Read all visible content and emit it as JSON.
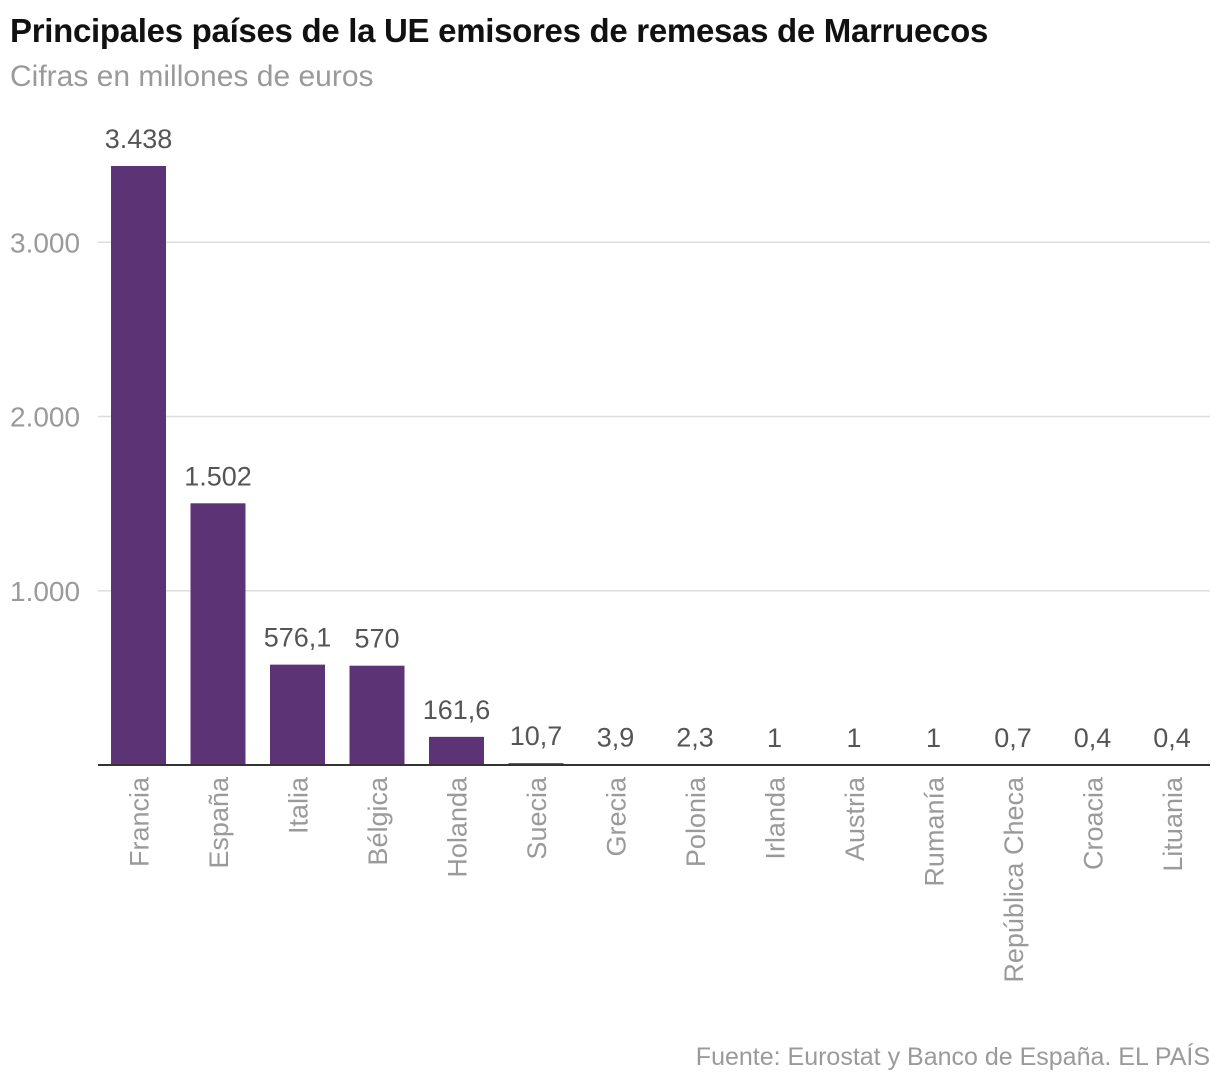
{
  "header": {
    "title": "Principales países de la UE emisores de remesas de Marruecos",
    "subtitle": "Cifras en millones de euros"
  },
  "footer": {
    "source": "Fuente: Eurostat y Banco de España. EL PAÍS"
  },
  "colors": {
    "bar": "#5c3475",
    "grid": "#dddddd",
    "axis": "#333333",
    "tick_text": "#9a9a9a",
    "value_text": "#555555"
  },
  "chart_data": {
    "type": "bar",
    "title": "Principales países de la UE emisores de remesas de Marruecos",
    "subtitle": "Cifras en millones de euros",
    "categories": [
      "Francia",
      "España",
      "Italia",
      "Bélgica",
      "Holanda",
      "Suecia",
      "Grecia",
      "Polonia",
      "Irlanda",
      "Austria",
      "Rumanía",
      "República Checa",
      "Croacia",
      "Lituania"
    ],
    "values": [
      3438,
      1502,
      576.1,
      570,
      161.6,
      10.7,
      3.9,
      2.3,
      1,
      1,
      1,
      0.7,
      0.4,
      0.4
    ],
    "value_labels": [
      "3.438",
      "1.502",
      "576,1",
      "570",
      "161,6",
      "10,7",
      "3,9",
      "2,3",
      "1",
      "1",
      "1",
      "0,7",
      "0,4",
      "0,4"
    ],
    "yticks": [
      1000,
      2000,
      3000
    ],
    "ytick_labels": [
      "1.000",
      "2.000",
      "3.000"
    ],
    "ylim": [
      0,
      3438
    ],
    "grid": true,
    "legend": false,
    "xlabel": "",
    "ylabel": ""
  }
}
